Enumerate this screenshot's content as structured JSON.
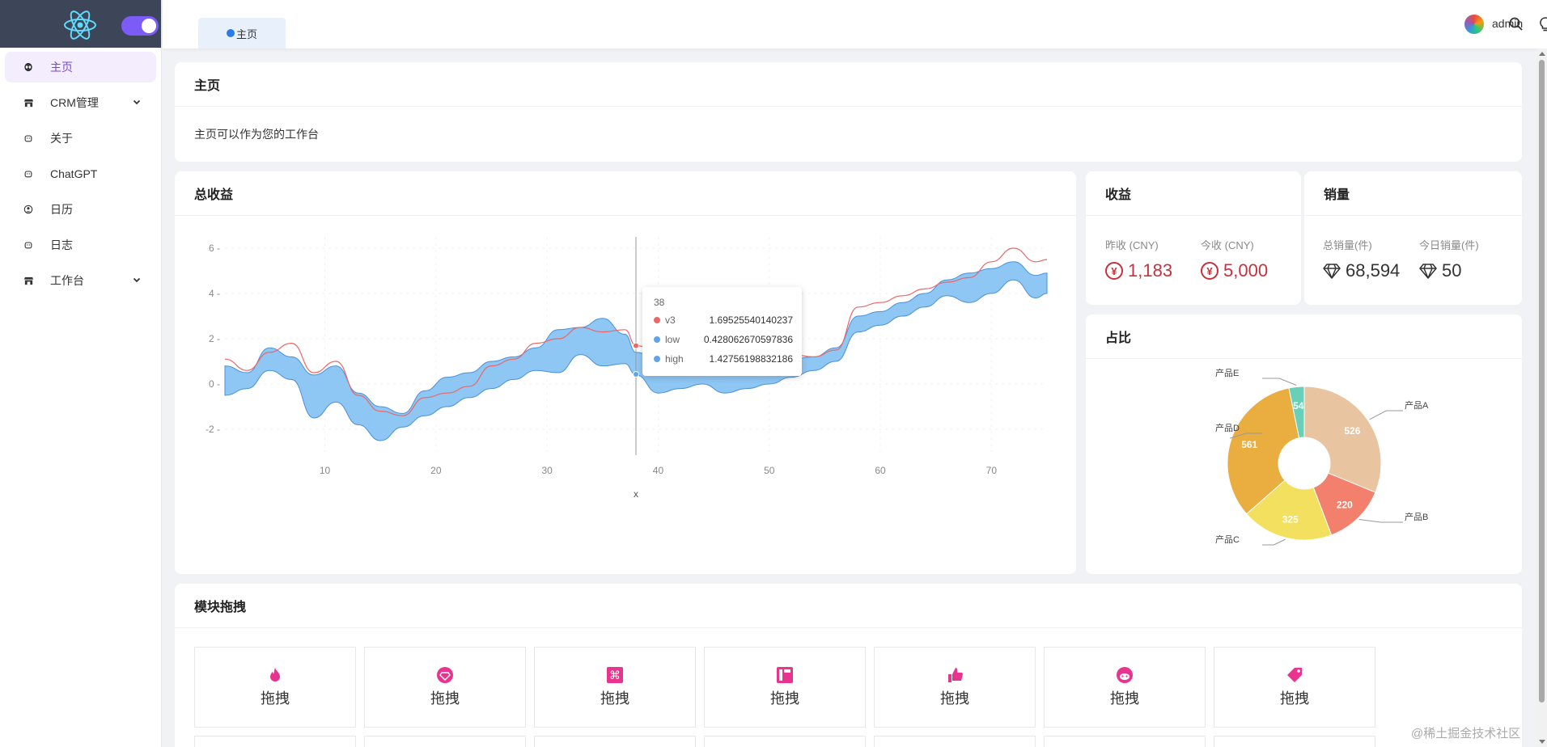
{
  "sidebar": {
    "items": [
      {
        "label": "主页",
        "icon": "alien-icon",
        "active": true
      },
      {
        "label": "CRM管理",
        "icon": "store-icon",
        "expandable": true
      },
      {
        "label": "关于",
        "icon": "android-icon"
      },
      {
        "label": "ChatGPT",
        "icon": "android-icon"
      },
      {
        "label": "日历",
        "icon": "face-icon"
      },
      {
        "label": "日志",
        "icon": "android-icon"
      },
      {
        "label": "工作台",
        "icon": "store-icon",
        "expandable": true
      }
    ]
  },
  "header": {
    "tab_label": "主页",
    "user": "admin"
  },
  "home_card": {
    "title": "主页",
    "text": "主页可以作为您的工作台"
  },
  "revenue_chart": {
    "title": "总收益",
    "xlabel": "x",
    "tooltip": {
      "x": "38",
      "rows": [
        {
          "name": "v3",
          "value": "1.69525540140237",
          "color": "#ee6666"
        },
        {
          "name": "low",
          "value": "0.428062670597836",
          "color": "#5fa4e8"
        },
        {
          "name": "high",
          "value": "1.42756198832186",
          "color": "#5fa4e8"
        }
      ]
    }
  },
  "income_card": {
    "title": "收益",
    "yesterday_label": "昨收 (CNY)",
    "yesterday_value": "1,183",
    "today_label": "今收 (CNY)",
    "today_value": "5,000"
  },
  "sales_card": {
    "title": "销量",
    "total_label": "总销量(件)",
    "total_value": "68,594",
    "today_label": "今日销量(件)",
    "today_value": "50"
  },
  "ratio_card": {
    "title": "占比"
  },
  "drag_card": {
    "title": "模块拖拽",
    "items": [
      {
        "label": "拖拽",
        "icon": "fire-icon"
      },
      {
        "label": "拖拽",
        "icon": "diamond-icon"
      },
      {
        "label": "拖拽",
        "icon": "command-icon"
      },
      {
        "label": "拖拽",
        "icon": "layout-icon"
      },
      {
        "label": "拖拽",
        "icon": "thumbs-up-icon"
      },
      {
        "label": "拖拽",
        "icon": "reddit-icon"
      },
      {
        "label": "拖拽",
        "icon": "tag-icon"
      }
    ]
  },
  "watermark": "@稀土掘金技术社区",
  "colors": {
    "accent": "#7b5cf6",
    "active_bg": "#f3edfd",
    "red": "#c8303b",
    "pink_icon": "#e8348f",
    "band": "#8ec6f4"
  },
  "chart_data": [
    {
      "type": "area",
      "title": "总收益",
      "xlabel": "x",
      "xlim": [
        1,
        75
      ],
      "ylim": [
        -3,
        6.5
      ],
      "x_ticks": [
        10,
        20,
        30,
        40,
        50,
        60,
        70
      ],
      "y_ticks": [
        -2,
        0,
        2,
        4,
        6
      ],
      "series": [
        {
          "name": "v3",
          "type": "line",
          "color": "#ee6666",
          "x": [
            1,
            3,
            5,
            7,
            9,
            11,
            13,
            15,
            17,
            19,
            21,
            23,
            25,
            27,
            29,
            31,
            33,
            35,
            37,
            38,
            40,
            42,
            44,
            46,
            48,
            50,
            52,
            54,
            56,
            58,
            60,
            62,
            64,
            66,
            68,
            70,
            72,
            74,
            75
          ],
          "values": [
            1.1,
            0.6,
            1.4,
            1.8,
            0.5,
            1.0,
            -0.5,
            -1.2,
            -1.4,
            -0.6,
            -0.4,
            -0.1,
            0.8,
            1.1,
            1.8,
            2.0,
            2.5,
            2.3,
            2.4,
            1.7,
            1.4,
            1.0,
            1.2,
            1.1,
            1.0,
            1.3,
            1.3,
            1.2,
            1.5,
            3.4,
            3.6,
            3.9,
            4.2,
            4.5,
            4.7,
            5.4,
            6.0,
            5.4,
            5.5
          ]
        },
        {
          "name": "low",
          "type": "band-lower",
          "color": "#5fa4e8",
          "x": [
            1,
            3,
            5,
            7,
            9,
            11,
            13,
            15,
            17,
            19,
            21,
            23,
            25,
            27,
            29,
            31,
            33,
            35,
            37,
            38,
            40,
            42,
            44,
            46,
            48,
            50,
            52,
            54,
            56,
            58,
            60,
            62,
            64,
            66,
            68,
            70,
            72,
            74,
            75
          ],
          "values": [
            -0.5,
            -0.2,
            0.6,
            0.2,
            -1.5,
            -0.8,
            -1.8,
            -2.5,
            -1.9,
            -1.4,
            -1.0,
            -0.6,
            -0.2,
            0.2,
            0.6,
            0.5,
            1.3,
            0.8,
            0.9,
            0.4,
            -0.4,
            -0.2,
            0.0,
            -0.4,
            -0.2,
            0.0,
            0.3,
            0.6,
            1.0,
            2.3,
            2.6,
            3.0,
            3.4,
            3.9,
            3.6,
            4.0,
            4.6,
            3.8,
            4.0
          ]
        },
        {
          "name": "high",
          "type": "band-upper",
          "color": "#5fa4e8",
          "x": [
            1,
            3,
            5,
            7,
            9,
            11,
            13,
            15,
            17,
            19,
            21,
            23,
            25,
            27,
            29,
            31,
            33,
            35,
            37,
            38,
            40,
            42,
            44,
            46,
            48,
            50,
            52,
            54,
            56,
            58,
            60,
            62,
            64,
            66,
            68,
            70,
            72,
            74,
            75
          ],
          "values": [
            0.8,
            0.5,
            1.6,
            1.2,
            0.4,
            0.8,
            -0.4,
            -1.0,
            -1.3,
            -0.3,
            0.3,
            0.5,
            1.0,
            1.2,
            1.6,
            2.4,
            2.5,
            2.9,
            2.2,
            1.4,
            1.1,
            1.0,
            1.0,
            1.1,
            1.0,
            1.2,
            1.1,
            1.2,
            1.6,
            3.0,
            3.2,
            3.6,
            4.0,
            4.6,
            4.9,
            5.1,
            5.4,
            4.8,
            4.9
          ]
        }
      ]
    },
    {
      "type": "pie",
      "title": "占比",
      "categories": [
        "产品A",
        "产品B",
        "产品C",
        "产品D",
        "产品E"
      ],
      "values": [
        526,
        220,
        325,
        561,
        54
      ],
      "colors": [
        "#e8c4a0",
        "#f2806c",
        "#f2e05e",
        "#e9ad40",
        "#6acfb8"
      ]
    }
  ]
}
